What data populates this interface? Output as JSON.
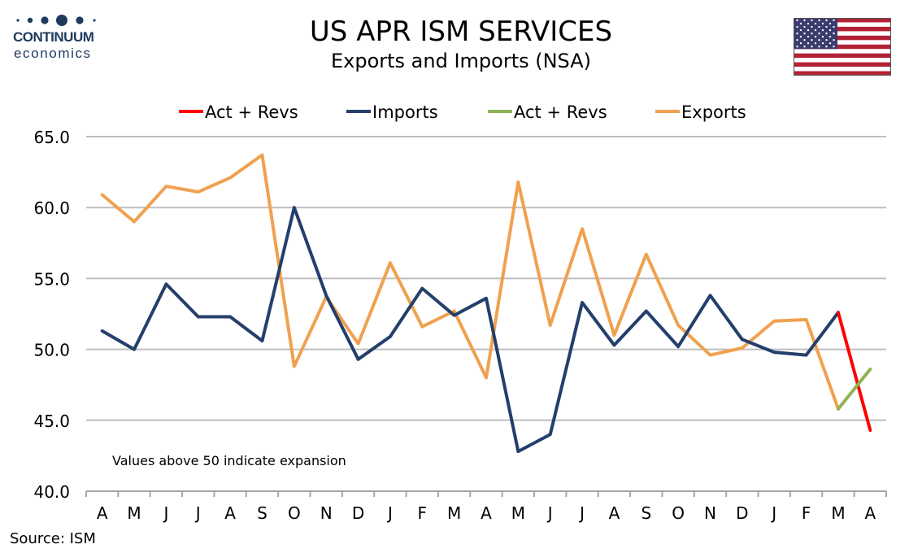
{
  "logo": {
    "main": "CONTINUUM",
    "sub": "economics"
  },
  "header": {
    "title": "US APR ISM SERVICES",
    "subtitle": "Exports and Imports (NSA)"
  },
  "flag": {
    "icon": "us-flag-icon"
  },
  "colors": {
    "imports": "#243f6b",
    "exports": "#f0a150",
    "imports_revision": "#ff0000",
    "exports_revision": "#8db356",
    "grid": "#bfbfbf",
    "axis": "#a6a6a6",
    "logo": "#1f3a5f"
  },
  "chart_data": {
    "type": "line",
    "categories": [
      "A",
      "M",
      "J",
      "J",
      "A",
      "S",
      "O",
      "N",
      "D",
      "J",
      "F",
      "M",
      "A",
      "M",
      "J",
      "J",
      "A",
      "S",
      "O",
      "N",
      "D",
      "J",
      "F",
      "M",
      "A"
    ],
    "ylim": [
      40,
      65
    ],
    "yticks": [
      "40.0",
      "45.0",
      "50.0",
      "55.0",
      "60.0",
      "65.0"
    ],
    "grid": "horizontal",
    "legend": {
      "position": "top",
      "entries": [
        "Act + Revs",
        "Imports",
        "Act + Revs",
        "Exports"
      ]
    },
    "series": [
      {
        "name": "Imports",
        "color": "#243f6b",
        "values": [
          51.3,
          50.0,
          54.6,
          52.3,
          52.3,
          50.6,
          60.0,
          53.8,
          49.3,
          50.9,
          54.3,
          52.4,
          53.6,
          42.8,
          44.0,
          53.3,
          50.3,
          52.7,
          50.2,
          53.8,
          50.7,
          49.8,
          49.6,
          52.6,
          null
        ]
      },
      {
        "name": "Exports",
        "color": "#f0a150",
        "values": [
          60.9,
          59.0,
          61.5,
          61.1,
          62.1,
          63.7,
          48.8,
          53.7,
          50.4,
          56.1,
          51.6,
          52.7,
          48.0,
          61.8,
          51.7,
          58.5,
          51.0,
          56.7,
          51.7,
          49.6,
          50.1,
          52.0,
          52.1,
          45.8,
          null
        ]
      },
      {
        "name": "Act + Revs",
        "color": "#ff0000",
        "values": [
          null,
          null,
          null,
          null,
          null,
          null,
          null,
          null,
          null,
          null,
          null,
          null,
          null,
          null,
          null,
          null,
          null,
          null,
          null,
          null,
          null,
          null,
          null,
          52.6,
          44.3
        ]
      },
      {
        "name": "Act + Revs",
        "color": "#8db356",
        "values": [
          null,
          null,
          null,
          null,
          null,
          null,
          null,
          null,
          null,
          null,
          null,
          null,
          null,
          null,
          null,
          null,
          null,
          null,
          null,
          null,
          null,
          null,
          null,
          45.8,
          48.6
        ]
      }
    ],
    "annotation": "Values above 50 indicate expansion"
  },
  "source": "Source: ISM"
}
